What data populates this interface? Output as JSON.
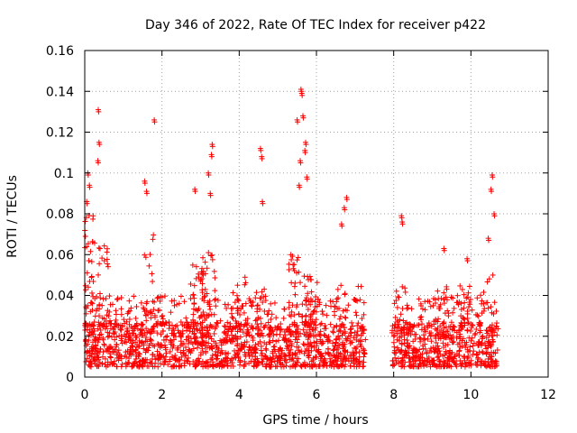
{
  "chart_data": {
    "type": "scatter",
    "title": "Day 346 of 2022, Rate Of TEC Index for receiver p422",
    "xlabel": "GPS time / hours",
    "ylabel": "ROTI / TECUs",
    "xlim": [
      0,
      12
    ],
    "ylim": [
      0,
      0.16
    ],
    "xticks": [
      "0",
      "2",
      "4",
      "6",
      "8",
      "10",
      "12"
    ],
    "yticks": [
      "0",
      "0.02",
      "0.04",
      "0.06",
      "0.08",
      "0.1",
      "0.12",
      "0.14",
      "0.16"
    ],
    "grid": true,
    "marker": "+",
    "color": "#ff0000",
    "coverage": [
      [
        0.0,
        7.25
      ],
      [
        7.95,
        10.7
      ]
    ],
    "baseline_range": [
      0.005,
      0.025
    ],
    "highlights": [
      {
        "x": 0.35,
        "y": 0.131
      },
      {
        "x": 0.37,
        "y": 0.115
      },
      {
        "x": 0.34,
        "y": 0.106
      },
      {
        "x": 0.08,
        "y": 0.1
      },
      {
        "x": 0.12,
        "y": 0.094
      },
      {
        "x": 0.05,
        "y": 0.086
      },
      {
        "x": 1.8,
        "y": 0.126
      },
      {
        "x": 1.55,
        "y": 0.096
      },
      {
        "x": 1.6,
        "y": 0.091
      },
      {
        "x": 2.85,
        "y": 0.092
      },
      {
        "x": 3.2,
        "y": 0.1
      },
      {
        "x": 3.3,
        "y": 0.114
      },
      {
        "x": 3.28,
        "y": 0.109
      },
      {
        "x": 3.25,
        "y": 0.09
      },
      {
        "x": 4.55,
        "y": 0.112
      },
      {
        "x": 4.58,
        "y": 0.108
      },
      {
        "x": 4.6,
        "y": 0.086
      },
      {
        "x": 5.6,
        "y": 0.141
      },
      {
        "x": 5.62,
        "y": 0.139
      },
      {
        "x": 5.65,
        "y": 0.128
      },
      {
        "x": 5.5,
        "y": 0.126
      },
      {
        "x": 5.72,
        "y": 0.115
      },
      {
        "x": 5.7,
        "y": 0.111
      },
      {
        "x": 5.58,
        "y": 0.106
      },
      {
        "x": 5.55,
        "y": 0.094
      },
      {
        "x": 5.75,
        "y": 0.098
      },
      {
        "x": 6.78,
        "y": 0.088
      },
      {
        "x": 6.72,
        "y": 0.083
      },
      {
        "x": 6.65,
        "y": 0.075
      },
      {
        "x": 8.2,
        "y": 0.079
      },
      {
        "x": 8.22,
        "y": 0.076
      },
      {
        "x": 10.55,
        "y": 0.099
      },
      {
        "x": 10.52,
        "y": 0.092
      },
      {
        "x": 10.6,
        "y": 0.08
      },
      {
        "x": 9.3,
        "y": 0.063
      },
      {
        "x": 9.9,
        "y": 0.058
      },
      {
        "x": 10.45,
        "y": 0.068
      }
    ],
    "bursts": [
      {
        "x": 0.1,
        "y": 0.08,
        "count": 40
      },
      {
        "x": 0.45,
        "y": 0.065,
        "count": 25
      },
      {
        "x": 1.65,
        "y": 0.07,
        "count": 18
      },
      {
        "x": 2.9,
        "y": 0.06,
        "count": 40
      },
      {
        "x": 3.2,
        "y": 0.062,
        "count": 40
      },
      {
        "x": 4.0,
        "y": 0.05,
        "count": 20
      },
      {
        "x": 4.6,
        "y": 0.045,
        "count": 16
      },
      {
        "x": 5.45,
        "y": 0.06,
        "count": 30
      },
      {
        "x": 5.85,
        "y": 0.05,
        "count": 35
      },
      {
        "x": 6.6,
        "y": 0.045,
        "count": 20
      },
      {
        "x": 7.1,
        "y": 0.045,
        "count": 14
      },
      {
        "x": 8.2,
        "y": 0.05,
        "count": 14
      },
      {
        "x": 9.25,
        "y": 0.045,
        "count": 25
      },
      {
        "x": 9.8,
        "y": 0.045,
        "count": 22
      },
      {
        "x": 10.4,
        "y": 0.05,
        "count": 22
      }
    ]
  }
}
